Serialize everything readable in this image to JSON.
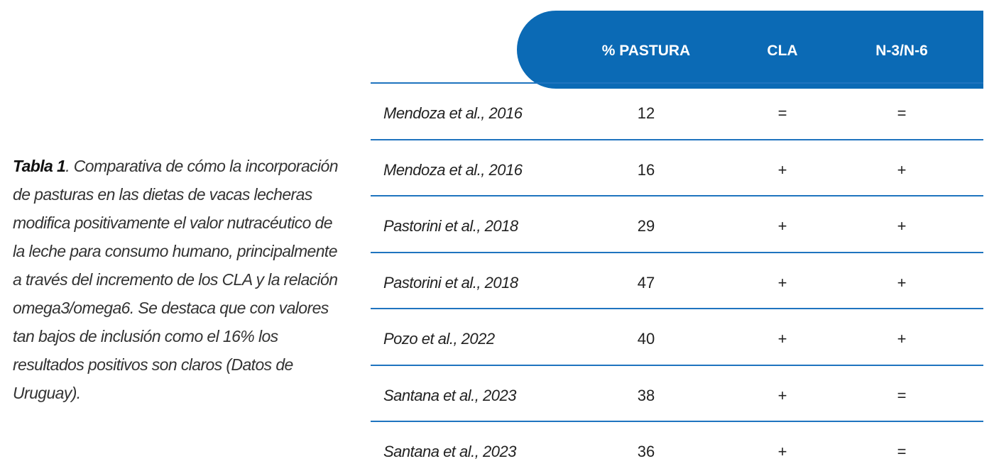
{
  "caption": {
    "label": "Tabla 1",
    "text": ". Comparativa de cómo la incorporación de pasturas en las dietas de vacas lecheras modifica positivamente el valor nutracéutico de la leche para consumo humano, principalmente a través del incremento de los CLA y la relación omega3/omega6. Se destaca que con valores tan bajos de inclusión como el 16% los resultados positivos son claros (Datos de Uruguay)."
  },
  "table": {
    "headers": [
      "% PASTURA",
      "CLA",
      "N-3/N-6"
    ],
    "rows": [
      [
        "Mendoza et al., 2016",
        12,
        "=",
        "="
      ],
      [
        "Mendoza et al., 2016",
        16,
        "+",
        "+"
      ],
      [
        "Pastorini et al., 2018",
        29,
        "+",
        "+"
      ],
      [
        "Pastorini et al., 2018",
        47,
        "+",
        "+"
      ],
      [
        "Pozo et al., 2022",
        40,
        "+",
        "+"
      ],
      [
        "Santana et al., 2023",
        38,
        "+",
        "="
      ],
      [
        "Santana et al., 2023",
        36,
        "+",
        "="
      ]
    ]
  }
}
